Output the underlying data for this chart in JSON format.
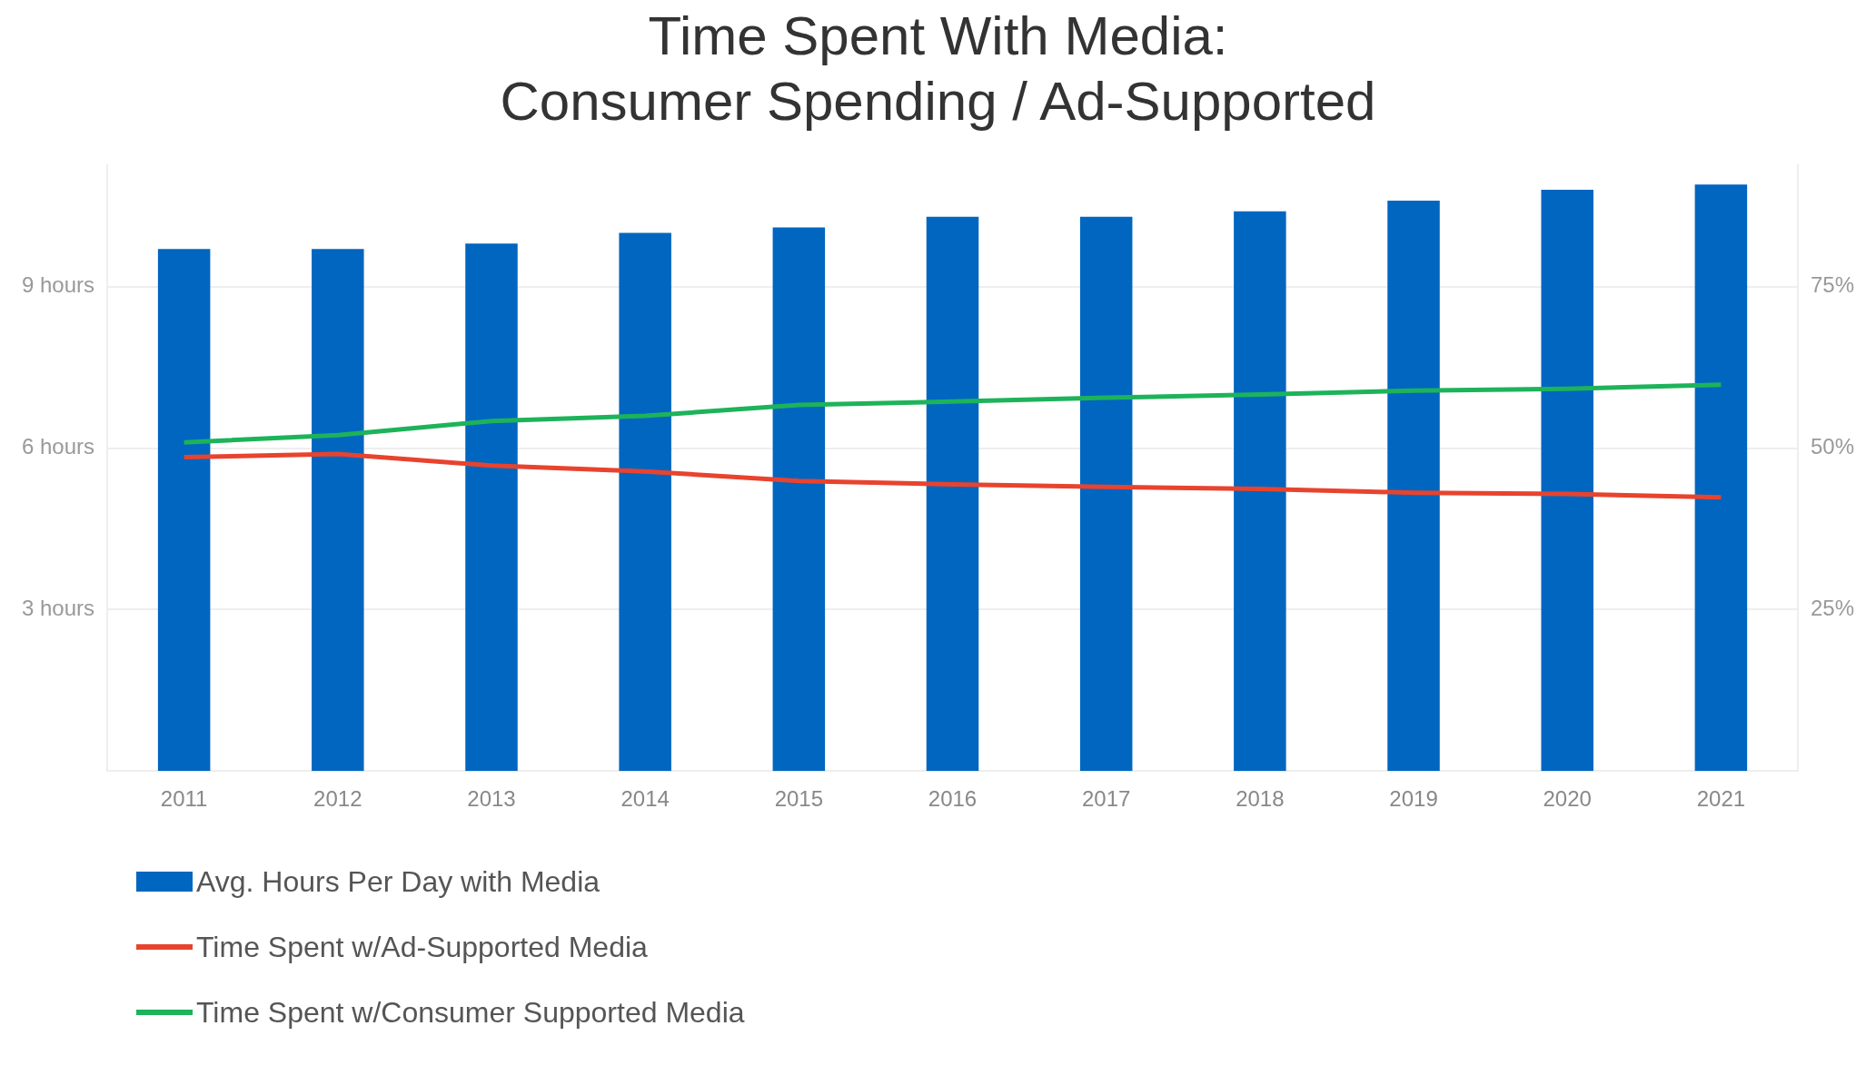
{
  "chart_data": {
    "type": "bar",
    "title": "Time Spent With Media:\nConsumer Spending / Ad-Supported",
    "categories": [
      "2011",
      "2012",
      "2013",
      "2014",
      "2015",
      "2016",
      "2017",
      "2018",
      "2019",
      "2020",
      "2021"
    ],
    "series": [
      {
        "name": "Avg. Hours Per Day with Media",
        "color": "#0066c0",
        "values": [
          9.7,
          9.7,
          9.8,
          10.0,
          10.1,
          10.3,
          10.3,
          10.4,
          10.6,
          10.8,
          10.9
        ]
      },
      {
        "name": "Time Spent w/Ad-Supported Media",
        "type": "line",
        "axis": "y2",
        "color": "#e8432e",
        "values": [
          48.6,
          49.1,
          47.3,
          46.4,
          44.9,
          44.4,
          44.0,
          43.7,
          43.1,
          42.9,
          42.4
        ]
      },
      {
        "name": "Time Spent w/Consumer Supported Media",
        "type": "line",
        "axis": "y2",
        "color": "#1db35a",
        "values": [
          50.9,
          52.0,
          54.2,
          55.0,
          56.7,
          57.2,
          57.8,
          58.3,
          58.9,
          59.2,
          59.8
        ]
      }
    ],
    "ylim": [
      0,
      11.25
    ],
    "yticks": [
      {
        "value": 3,
        "label": "3 hours"
      },
      {
        "value": 6,
        "label": "6 hours"
      },
      {
        "value": 9,
        "label": "9 hours"
      }
    ],
    "y2lim": [
      0,
      93.75
    ],
    "y2ticks": [
      {
        "value": 25,
        "label": "25%"
      },
      {
        "value": 50,
        "label": "50%"
      },
      {
        "value": 75,
        "label": "75%"
      }
    ],
    "grid": "y",
    "legend": "bottom left",
    "marker": "none"
  }
}
